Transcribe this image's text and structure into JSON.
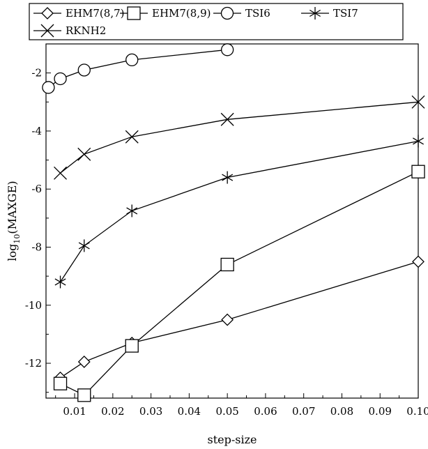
{
  "chart_data": {
    "type": "line",
    "title": "",
    "xlabel": "step-size",
    "ylabel_main": "log",
    "ylabel_sub": "10",
    "ylabel_rest": "(MAXGE)",
    "xlim": [
      0.0025,
      0.1
    ],
    "ylim": [
      -13.2,
      -1.0
    ],
    "x_ticks": [
      0.01,
      0.02,
      0.03,
      0.04,
      0.05,
      0.06,
      0.07,
      0.08,
      0.09,
      0.1
    ],
    "x_tick_labels": [
      "0.01",
      "0.02",
      "0.03",
      "0.04",
      "0.05",
      "0.06",
      "0.07",
      "0.08",
      "0.09",
      "0.10"
    ],
    "y_ticks": [
      -12,
      -10,
      -8,
      -6,
      -4,
      -2
    ],
    "y_tick_labels": [
      "-12",
      "-10",
      "-8",
      "-6",
      "-4",
      "-2"
    ],
    "grid": false,
    "legend_placement": "top",
    "series": [
      {
        "name": "EHM7(8,7)",
        "marker": "diamond",
        "x": [
          0.00625,
          0.0125,
          0.025,
          0.05,
          0.1
        ],
        "y": [
          -12.5,
          -11.95,
          -11.3,
          -10.5,
          -8.5
        ]
      },
      {
        "name": "EHM7(8,9)",
        "marker": "square",
        "x": [
          0.00625,
          0.0125,
          0.025,
          0.05,
          0.1
        ],
        "y": [
          -12.7,
          -13.1,
          -11.4,
          -8.6,
          -5.4
        ]
      },
      {
        "name": "TSI6",
        "marker": "circle",
        "x": [
          0.003125,
          0.00625,
          0.0125,
          0.025,
          0.05
        ],
        "y": [
          -2.5,
          -2.2,
          -1.9,
          -1.55,
          -1.2
        ]
      },
      {
        "name": "TSI7",
        "marker": "asterisk",
        "x": [
          0.00625,
          0.0125,
          0.025,
          0.05,
          0.1
        ],
        "y": [
          -9.2,
          -7.95,
          -6.75,
          -5.6,
          -4.35
        ]
      },
      {
        "name": "RKNH2",
        "marker": "x",
        "x": [
          0.00625,
          0.0125,
          0.025,
          0.05,
          0.1
        ],
        "y": [
          -5.45,
          -4.8,
          -4.2,
          -3.6,
          -3.0
        ]
      }
    ]
  }
}
